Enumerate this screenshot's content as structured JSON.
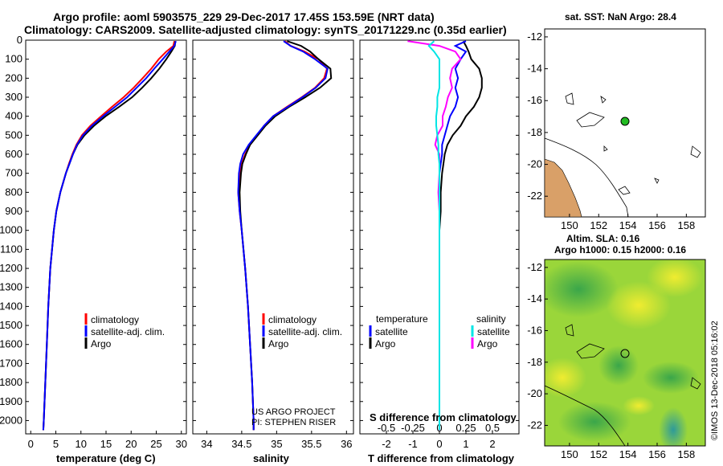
{
  "header": {
    "line1": "Argo profile: aoml 5903575_229 29-Dec-2017 17.45S 153.59E (NRT data)",
    "line2": "Climatology: CARS2009. Satellite-adjusted climatology: synTS_20171229.nc (0.35d earlier)"
  },
  "colors": {
    "climatology": "#ff0000",
    "satellite": "#0000ff",
    "argo": "#000000",
    "salinity_satellite": "#00e5e5",
    "salinity_argo": "#ff00ff",
    "float_marker": "#22bb22"
  },
  "chart_data": [
    {
      "type": "line",
      "panel": "temperature",
      "xlabel": "temperature (deg C)",
      "ylabel": "depth",
      "xlim": [
        -1,
        31
      ],
      "ylim": [
        2070,
        0
      ],
      "xticks": [
        "0",
        "5",
        "10",
        "15",
        "20",
        "25",
        "30"
      ],
      "yticks": [
        "0",
        "100",
        "200",
        "300",
        "400",
        "500",
        "600",
        "700",
        "800",
        "900",
        "1000",
        "1100",
        "1200",
        "1300",
        "1400",
        "1500",
        "1600",
        "1700",
        "1800",
        "1900",
        "2000"
      ],
      "legend": [
        "climatology",
        "satellite-adj. clim.",
        "Argo"
      ],
      "series": [
        {
          "name": "climatology",
          "depth": [
            5,
            30,
            60,
            100,
            150,
            200,
            250,
            300,
            350,
            400,
            450,
            500,
            550,
            600,
            650,
            700,
            800,
            900,
            1000,
            1200,
            1400,
            1600,
            1800,
            2000,
            2050
          ],
          "values": [
            28.6,
            28.4,
            27.0,
            25.5,
            24.0,
            22.3,
            20.5,
            18.5,
            16.2,
            14.0,
            11.9,
            10.2,
            9.1,
            8.3,
            7.6,
            7.0,
            5.9,
            5.1,
            4.6,
            3.9,
            3.5,
            3.2,
            2.9,
            2.6,
            2.5
          ]
        },
        {
          "name": "satellite-adj. clim.",
          "depth": [
            5,
            30,
            60,
            100,
            150,
            200,
            250,
            300,
            350,
            400,
            450,
            500,
            550,
            600,
            650,
            700,
            800,
            900,
            1000,
            1200,
            1400,
            1600,
            1800,
            2000,
            2050
          ],
          "values": [
            28.9,
            28.6,
            27.6,
            26.3,
            24.6,
            23.0,
            21.1,
            19.2,
            16.8,
            14.4,
            12.2,
            10.4,
            9.2,
            8.4,
            7.7,
            7.0,
            5.9,
            5.1,
            4.6,
            3.9,
            3.5,
            3.2,
            2.9,
            2.6,
            2.5
          ]
        },
        {
          "name": "Argo",
          "depth": [
            5,
            30,
            60,
            100,
            150,
            200,
            250,
            300,
            350,
            400,
            450,
            500,
            550,
            600,
            650,
            700,
            800,
            900,
            1000,
            1200,
            1400,
            1600,
            1800,
            2000,
            2050
          ],
          "values": [
            28.8,
            28.7,
            28.0,
            27.0,
            25.6,
            24.0,
            22.2,
            20.2,
            17.6,
            14.9,
            12.6,
            10.7,
            9.3,
            8.4,
            7.7,
            7.0,
            5.9,
            5.1,
            4.6,
            3.9,
            3.5,
            3.2,
            2.9,
            2.6,
            2.5
          ]
        }
      ]
    },
    {
      "type": "line",
      "panel": "salinity",
      "xlabel": "salinity",
      "xlim": [
        33.8,
        36.1
      ],
      "ylim": [
        2070,
        0
      ],
      "xticks": [
        "34",
        "34.5",
        "35",
        "35.5",
        "36"
      ],
      "legend": [
        "climatology",
        "satellite-adj. clim.",
        "Argo"
      ],
      "credits": [
        "US ARGO PROJECT",
        "PI: STEPHEN RISER"
      ],
      "series": [
        {
          "name": "climatology",
          "depth": [
            5,
            30,
            60,
            100,
            150,
            200,
            250,
            300,
            350,
            400,
            450,
            500,
            550,
            600,
            650,
            700,
            800,
            900,
            1000,
            1200,
            1400,
            1600,
            1800,
            2000,
            2050
          ],
          "values": [
            35.12,
            35.2,
            35.4,
            35.6,
            35.72,
            35.68,
            35.55,
            35.36,
            35.15,
            34.95,
            34.82,
            34.72,
            34.62,
            34.55,
            34.5,
            34.47,
            34.45,
            34.47,
            34.5,
            34.55,
            34.59,
            34.62,
            34.65,
            34.67,
            34.67
          ]
        },
        {
          "name": "satellite-adj. clim.",
          "depth": [
            5,
            30,
            60,
            100,
            150,
            200,
            250,
            300,
            350,
            400,
            450,
            500,
            550,
            600,
            650,
            700,
            800,
            900,
            1000,
            1200,
            1400,
            1600,
            1800,
            2000,
            2050
          ],
          "values": [
            35.1,
            35.2,
            35.38,
            35.55,
            35.73,
            35.7,
            35.56,
            35.37,
            35.16,
            34.95,
            34.82,
            34.71,
            34.6,
            34.52,
            34.48,
            34.46,
            34.45,
            34.47,
            34.5,
            34.55,
            34.59,
            34.62,
            34.65,
            34.67,
            34.67
          ]
        },
        {
          "name": "Argo",
          "depth": [
            5,
            30,
            60,
            100,
            150,
            200,
            250,
            300,
            350,
            400,
            450,
            500,
            550,
            600,
            650,
            700,
            800,
            900,
            1000,
            1200,
            1400,
            1600,
            1800,
            2000,
            2050
          ],
          "values": [
            35.15,
            35.35,
            35.48,
            35.6,
            35.77,
            35.78,
            35.62,
            35.41,
            35.18,
            34.98,
            34.84,
            34.73,
            34.62,
            34.56,
            34.51,
            34.49,
            34.47,
            34.48,
            34.5,
            34.55,
            34.59,
            34.62,
            34.65,
            34.67,
            34.67
          ]
        }
      ]
    },
    {
      "type": "line",
      "panel": "difference",
      "xlabel": "T difference from climatology",
      "x2label": "S difference from climatology",
      "xlim": [
        -3,
        3
      ],
      "ylim": [
        2070,
        0
      ],
      "xticks": [
        "-2",
        "-1",
        "0",
        "1",
        "2"
      ],
      "x2ticks": [
        "-0.5",
        "-0.25",
        "0",
        "0.25",
        "0.5"
      ],
      "legend_temperature_title": "temperature",
      "legend_salinity_title": "salinity",
      "legend_temperature": [
        "satellite",
        "Argo"
      ],
      "legend_salinity": [
        "satellite",
        "Argo"
      ],
      "series": [
        {
          "name": "T satellite",
          "depth": [
            5,
            30,
            60,
            100,
            150,
            200,
            250,
            300,
            350,
            400,
            450,
            500,
            550,
            600,
            650,
            700,
            800,
            900,
            1000,
            1200,
            1500,
            1800,
            2050
          ],
          "values": [
            1.0,
            0.6,
            1.0,
            0.8,
            0.6,
            0.7,
            0.6,
            0.7,
            0.6,
            0.4,
            0.3,
            0.2,
            0.1,
            0.1,
            0.05,
            0.0,
            0.0,
            0.0,
            0.0,
            0.0,
            0.0,
            0.0,
            0.0
          ]
        },
        {
          "name": "T Argo",
          "depth": [
            5,
            30,
            60,
            100,
            150,
            200,
            250,
            300,
            350,
            400,
            450,
            500,
            550,
            600,
            650,
            700,
            800,
            900,
            1000,
            1200,
            1500,
            1800,
            2050
          ],
          "values": [
            0.9,
            1.0,
            1.1,
            1.2,
            1.5,
            1.6,
            1.6,
            1.5,
            1.3,
            1.0,
            0.8,
            0.5,
            0.3,
            0.2,
            0.15,
            0.1,
            0.05,
            0.05,
            0.0,
            0.0,
            0.0,
            0.0,
            0.0
          ]
        },
        {
          "name": "S satellite",
          "depth": [
            5,
            30,
            60,
            100,
            150,
            200,
            250,
            300,
            350,
            400,
            450,
            500,
            550,
            600,
            650,
            700,
            800,
            900,
            1000,
            1200,
            1500,
            1800,
            2050
          ],
          "values": [
            -0.05,
            -0.1,
            -0.05,
            0.0,
            0.0,
            0.0,
            0.0,
            -0.02,
            -0.02,
            -0.03,
            -0.03,
            -0.02,
            -0.01,
            -0.01,
            0.0,
            0.0,
            0.0,
            0.0,
            0.0,
            0.0,
            0.0,
            0.0,
            0.0
          ]
        },
        {
          "name": "S Argo",
          "depth": [
            5,
            30,
            60,
            100,
            150,
            200,
            250,
            300,
            350,
            400,
            450,
            500,
            550,
            600,
            650,
            700,
            800,
            900,
            1000,
            1200,
            1500,
            1800,
            2050
          ],
          "values": [
            -0.3,
            0.0,
            0.15,
            0.2,
            0.12,
            0.1,
            0.12,
            0.08,
            0.06,
            0.03,
            0.03,
            -0.02,
            -0.04,
            0.0,
            0.0,
            0.0,
            -0.01,
            0.0,
            0.0,
            0.0,
            0.0,
            0.0,
            0.0
          ]
        }
      ]
    },
    {
      "type": "map",
      "panel": "sst_map",
      "title": "sat. SST: NaN Argo: 28.4",
      "xticks": [
        "150",
        "152",
        "154",
        "156",
        "158"
      ],
      "yticks": [
        "-12",
        "-14",
        "-16",
        "-18",
        "-20",
        "-22"
      ],
      "float_position": {
        "lon": 153.59,
        "lat": -17.45
      }
    },
    {
      "type": "heatmap",
      "panel": "sla_map",
      "title1": "Altim. SLA: 0.16",
      "title2": "Argo h1000: 0.15 h2000: 0.16",
      "xticks": [
        "150",
        "152",
        "154",
        "156",
        "158"
      ],
      "yticks": [
        "-12",
        "-14",
        "-16",
        "-18",
        "-20",
        "-22"
      ],
      "float_position": {
        "lon": 153.59,
        "lat": -17.45
      }
    }
  ],
  "footer": {
    "stamp": "©IMOS 13-Dec-2018 05:16:02"
  }
}
